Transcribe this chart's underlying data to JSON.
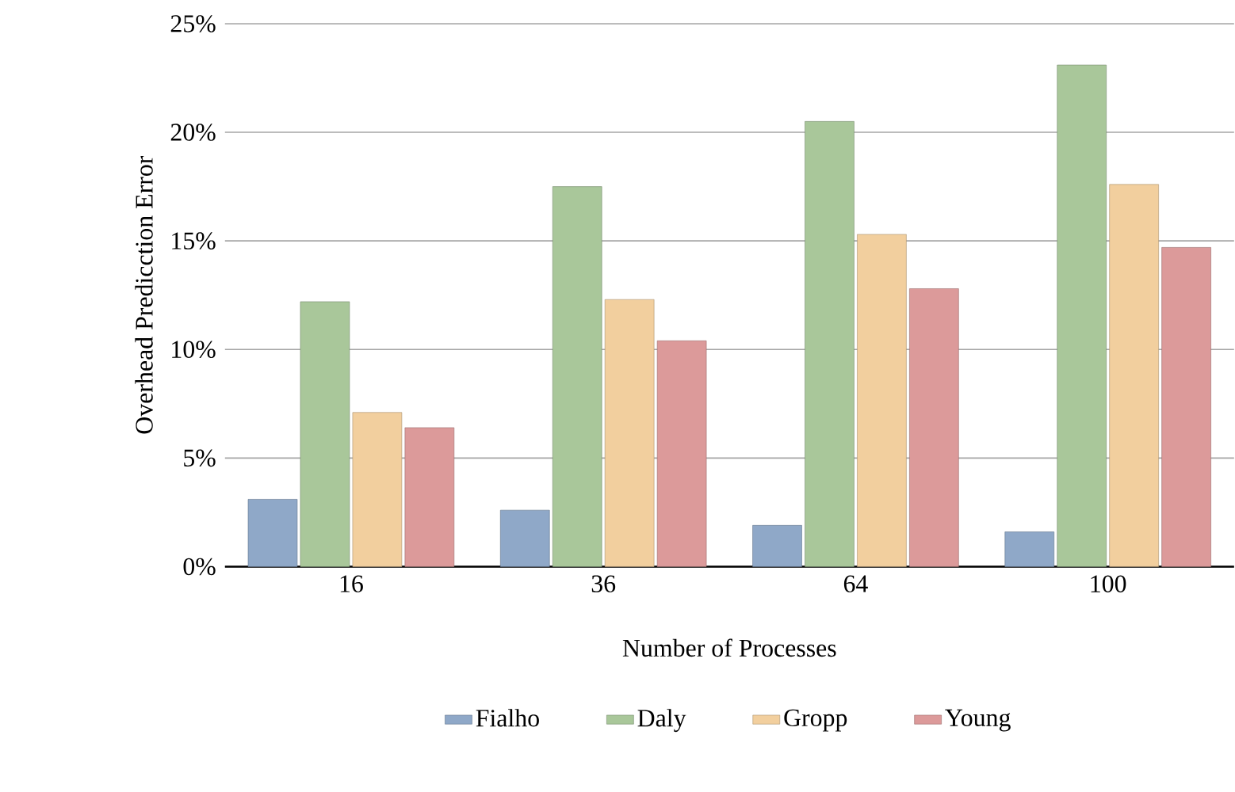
{
  "chart_data": {
    "type": "bar",
    "xlabel": "Number of Processes",
    "ylabel": "Overhead Predicction Error",
    "categories": [
      "16",
      "36",
      "64",
      "100"
    ],
    "series": [
      {
        "name": "Fialho",
        "color": "#8fa8c8",
        "values": [
          3.1,
          2.6,
          1.9,
          1.6
        ]
      },
      {
        "name": "Daly",
        "color": "#a9c79a",
        "values": [
          12.2,
          17.5,
          20.5,
          23.1
        ]
      },
      {
        "name": "Gropp",
        "color": "#f2cf9e",
        "values": [
          7.1,
          12.3,
          15.3,
          17.6
        ]
      },
      {
        "name": "Young",
        "color": "#dc9a9a",
        "values": [
          6.4,
          10.4,
          12.8,
          14.7
        ]
      }
    ],
    "ylim": [
      0,
      25
    ],
    "yticks": [
      {
        "value": 0,
        "label": "0%"
      },
      {
        "value": 5,
        "label": "5%"
      },
      {
        "value": 10,
        "label": "10%"
      },
      {
        "value": 15,
        "label": "15%"
      },
      {
        "value": 20,
        "label": "20%"
      },
      {
        "value": 25,
        "label": "25%"
      }
    ],
    "grid": "y",
    "legend": "bottom"
  }
}
